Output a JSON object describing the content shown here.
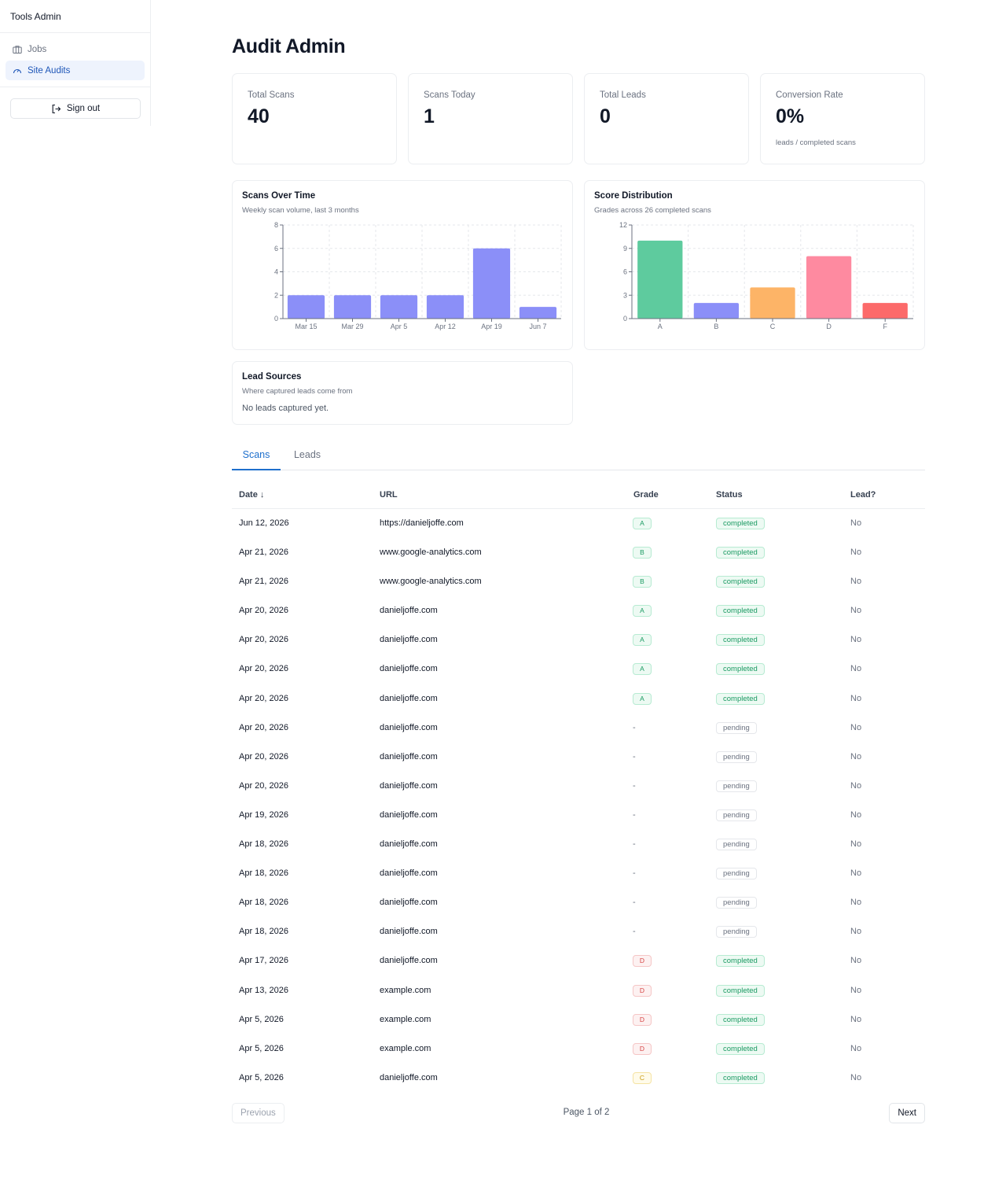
{
  "sidebar": {
    "brand": "Tools Admin",
    "items": [
      {
        "label": "Jobs",
        "icon": "briefcase-icon",
        "active": false
      },
      {
        "label": "Site Audits",
        "icon": "gauge-icon",
        "active": true
      }
    ],
    "signout_label": "Sign out"
  },
  "page": {
    "title": "Audit Admin"
  },
  "stats": [
    {
      "label": "Total Scans",
      "value": "40",
      "note": ""
    },
    {
      "label": "Scans Today",
      "value": "1",
      "note": ""
    },
    {
      "label": "Total Leads",
      "value": "0",
      "note": ""
    },
    {
      "label": "Conversion Rate",
      "value": "0%",
      "note": "leads / completed scans"
    }
  ],
  "chart_data": [
    {
      "type": "bar",
      "title": "Scans Over Time",
      "subtitle": "Weekly scan volume, last 3 months",
      "categories": [
        "Mar 15",
        "Mar 29",
        "Apr 5",
        "Apr 12",
        "Apr 19",
        "Jun 7"
      ],
      "values": [
        2,
        2,
        2,
        2,
        6,
        1
      ],
      "yticks": [
        0,
        2,
        4,
        6,
        8
      ],
      "ylim": [
        0,
        8
      ],
      "color": "#8b8ff8",
      "grid": true
    },
    {
      "type": "bar",
      "title": "Score Distribution",
      "subtitle": "Grades across 26 completed scans",
      "categories": [
        "A",
        "B",
        "C",
        "D",
        "F"
      ],
      "values": [
        10,
        2,
        4,
        8,
        2
      ],
      "colors": [
        "#5ecb9e",
        "#8b8ff8",
        "#fdb467",
        "#fe8aa0",
        "#fc6a6a"
      ],
      "yticks": [
        0,
        3,
        6,
        9,
        12
      ],
      "ylim": [
        0,
        12
      ],
      "grid": true
    }
  ],
  "lead_sources": {
    "title": "Lead Sources",
    "subtitle": "Where captured leads come from",
    "empty": "No leads captured yet."
  },
  "tabs": [
    {
      "label": "Scans",
      "active": true
    },
    {
      "label": "Leads",
      "active": false
    }
  ],
  "table": {
    "headers": {
      "date": "Date ↓",
      "url": "URL",
      "grade": "Grade",
      "status": "Status",
      "lead": "Lead?"
    },
    "rows": [
      {
        "date": "Jun 12, 2026",
        "url": "https://danieljoffe.com",
        "grade": "A",
        "status": "completed",
        "lead": "No"
      },
      {
        "date": "Apr 21, 2026",
        "url": "www.google-analytics.com",
        "grade": "B",
        "status": "completed",
        "lead": "No"
      },
      {
        "date": "Apr 21, 2026",
        "url": "www.google-analytics.com",
        "grade": "B",
        "status": "completed",
        "lead": "No"
      },
      {
        "date": "Apr 20, 2026",
        "url": "danieljoffe.com",
        "grade": "A",
        "status": "completed",
        "lead": "No"
      },
      {
        "date": "Apr 20, 2026",
        "url": "danieljoffe.com",
        "grade": "A",
        "status": "completed",
        "lead": "No"
      },
      {
        "date": "Apr 20, 2026",
        "url": "danieljoffe.com",
        "grade": "A",
        "status": "completed",
        "lead": "No"
      },
      {
        "date": "Apr 20, 2026",
        "url": "danieljoffe.com",
        "grade": "A",
        "status": "completed",
        "lead": "No"
      },
      {
        "date": "Apr 20, 2026",
        "url": "danieljoffe.com",
        "grade": "-",
        "status": "pending",
        "lead": "No"
      },
      {
        "date": "Apr 20, 2026",
        "url": "danieljoffe.com",
        "grade": "-",
        "status": "pending",
        "lead": "No"
      },
      {
        "date": "Apr 20, 2026",
        "url": "danieljoffe.com",
        "grade": "-",
        "status": "pending",
        "lead": "No"
      },
      {
        "date": "Apr 19, 2026",
        "url": "danieljoffe.com",
        "grade": "-",
        "status": "pending",
        "lead": "No"
      },
      {
        "date": "Apr 18, 2026",
        "url": "danieljoffe.com",
        "grade": "-",
        "status": "pending",
        "lead": "No"
      },
      {
        "date": "Apr 18, 2026",
        "url": "danieljoffe.com",
        "grade": "-",
        "status": "pending",
        "lead": "No"
      },
      {
        "date": "Apr 18, 2026",
        "url": "danieljoffe.com",
        "grade": "-",
        "status": "pending",
        "lead": "No"
      },
      {
        "date": "Apr 18, 2026",
        "url": "danieljoffe.com",
        "grade": "-",
        "status": "pending",
        "lead": "No"
      },
      {
        "date": "Apr 17, 2026",
        "url": "danieljoffe.com",
        "grade": "D",
        "status": "completed",
        "lead": "No"
      },
      {
        "date": "Apr 13, 2026",
        "url": "example.com",
        "grade": "D",
        "status": "completed",
        "lead": "No"
      },
      {
        "date": "Apr 5, 2026",
        "url": "example.com",
        "grade": "D",
        "status": "completed",
        "lead": "No"
      },
      {
        "date": "Apr 5, 2026",
        "url": "example.com",
        "grade": "D",
        "status": "completed",
        "lead": "No"
      },
      {
        "date": "Apr 5, 2026",
        "url": "danieljoffe.com",
        "grade": "C",
        "status": "completed",
        "lead": "No"
      }
    ]
  },
  "pagination": {
    "previous_label": "Previous",
    "page_text": "Page 1 of 2",
    "next_label": "Next"
  }
}
